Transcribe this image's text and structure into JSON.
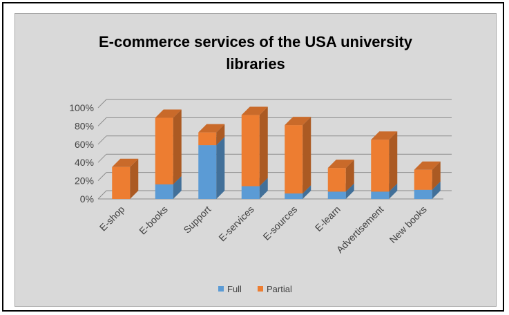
{
  "chart_data": {
    "type": "bar",
    "stacked": true,
    "three_d": true,
    "title_lines": [
      "E-commerce services of the USA university",
      "libraries"
    ],
    "categories": [
      "E-shop",
      "E-books",
      "Support",
      "E-services",
      "E-sources",
      "E-learn",
      "Advertisement",
      "New books"
    ],
    "series": [
      {
        "name": "Full",
        "values": [
          0,
          16,
          59,
          14,
          6,
          8,
          8,
          10
        ],
        "color": "#5b9bd5"
      },
      {
        "name": "Partial",
        "values": [
          35,
          73,
          14,
          78,
          75,
          26,
          57,
          22
        ],
        "color": "#ed7d31"
      }
    ],
    "yticks": [
      "0%",
      "20%",
      "40%",
      "60%",
      "80%",
      "100%"
    ],
    "ylim": [
      0,
      100
    ],
    "legend_position": "bottom",
    "grid": true
  }
}
